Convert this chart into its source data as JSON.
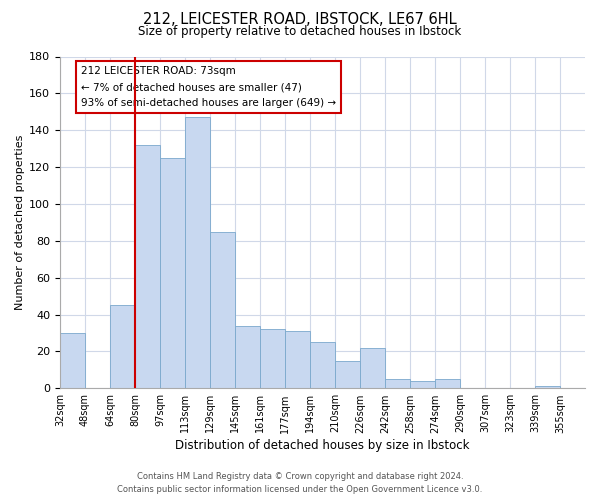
{
  "title": "212, LEICESTER ROAD, IBSTOCK, LE67 6HL",
  "subtitle": "Size of property relative to detached houses in Ibstock",
  "xlabel": "Distribution of detached houses by size in Ibstock",
  "ylabel": "Number of detached properties",
  "bin_labels": [
    "32sqm",
    "48sqm",
    "64sqm",
    "80sqm",
    "97sqm",
    "113sqm",
    "129sqm",
    "145sqm",
    "161sqm",
    "177sqm",
    "194sqm",
    "210sqm",
    "226sqm",
    "242sqm",
    "258sqm",
    "274sqm",
    "290sqm",
    "307sqm",
    "323sqm",
    "339sqm",
    "355sqm"
  ],
  "bar_heights": [
    30,
    0,
    45,
    132,
    125,
    147,
    85,
    34,
    32,
    31,
    25,
    15,
    22,
    5,
    4,
    5,
    0,
    0,
    0,
    1,
    0
  ],
  "bar_color": "#c8d8f0",
  "bar_edge_color": "#7aa8cc",
  "vline_x_idx": 3,
  "vline_color": "#cc0000",
  "ylim": [
    0,
    180
  ],
  "yticks": [
    0,
    20,
    40,
    60,
    80,
    100,
    120,
    140,
    160,
    180
  ],
  "annotation_title": "212 LEICESTER ROAD: 73sqm",
  "annotation_line1": "← 7% of detached houses are smaller (47)",
  "annotation_line2": "93% of semi-detached houses are larger (649) →",
  "annotation_box_color": "#ffffff",
  "annotation_box_edge": "#cc0000",
  "footer_line1": "Contains HM Land Registry data © Crown copyright and database right 2024.",
  "footer_line2": "Contains public sector information licensed under the Open Government Licence v3.0.",
  "background_color": "#ffffff",
  "grid_color": "#d0d8e8"
}
